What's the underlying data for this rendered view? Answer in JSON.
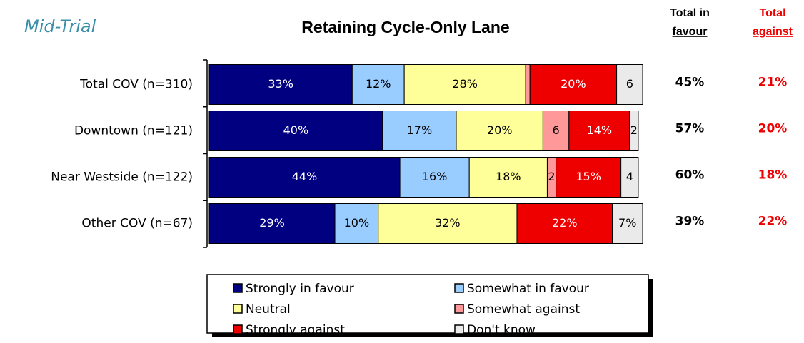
{
  "chart_data": {
    "type": "stacked-barh",
    "subtitle": "Mid-Trial",
    "title": "Retaining Cycle-Only Lane",
    "categories": [
      "Total COV (n=310)",
      "Downtown (n=121)",
      "Near Westside (n=122)",
      "Other COV (n=67)"
    ],
    "xlim": [
      0,
      100
    ],
    "series": [
      {
        "name": "Strongly in favour",
        "color": "#000080",
        "values": [
          33,
          40,
          44,
          29
        ],
        "value_labels": [
          "33%",
          "40%",
          "44%",
          "29%"
        ]
      },
      {
        "name": "Somewhat in favour",
        "color": "#99ccff",
        "values": [
          12,
          17,
          16,
          10
        ],
        "value_labels": [
          "12%",
          "17%",
          "16%",
          "10%"
        ]
      },
      {
        "name": "Neutral",
        "color": "#ffff99",
        "values": [
          28,
          20,
          18,
          32
        ],
        "value_labels": [
          "28%",
          "20%",
          "18%",
          "32%"
        ]
      },
      {
        "name": "Somewhat against",
        "color": "#ff9999",
        "values": [
          1,
          6,
          2,
          0
        ],
        "value_labels": [
          null,
          "6",
          "2",
          null
        ]
      },
      {
        "name": "Strongly against",
        "color": "#ee0000",
        "values": [
          20,
          14,
          15,
          22
        ],
        "value_labels": [
          "20%",
          "14%",
          "15%",
          "22%"
        ]
      },
      {
        "name": "Don't know",
        "color": "#eaeaea",
        "values": [
          6,
          2,
          4,
          7
        ],
        "value_labels": [
          "6",
          "2",
          "4",
          "7%"
        ]
      }
    ],
    "totals": [
      {
        "header": [
          "Total in",
          "favour"
        ],
        "color": "#000000",
        "labels": [
          "45%",
          "57%",
          "60%",
          "39%"
        ]
      },
      {
        "header": [
          "Total",
          "against"
        ],
        "color": "#ee0000",
        "labels": [
          "21%",
          "20%",
          "18%",
          "22%"
        ]
      }
    ]
  }
}
